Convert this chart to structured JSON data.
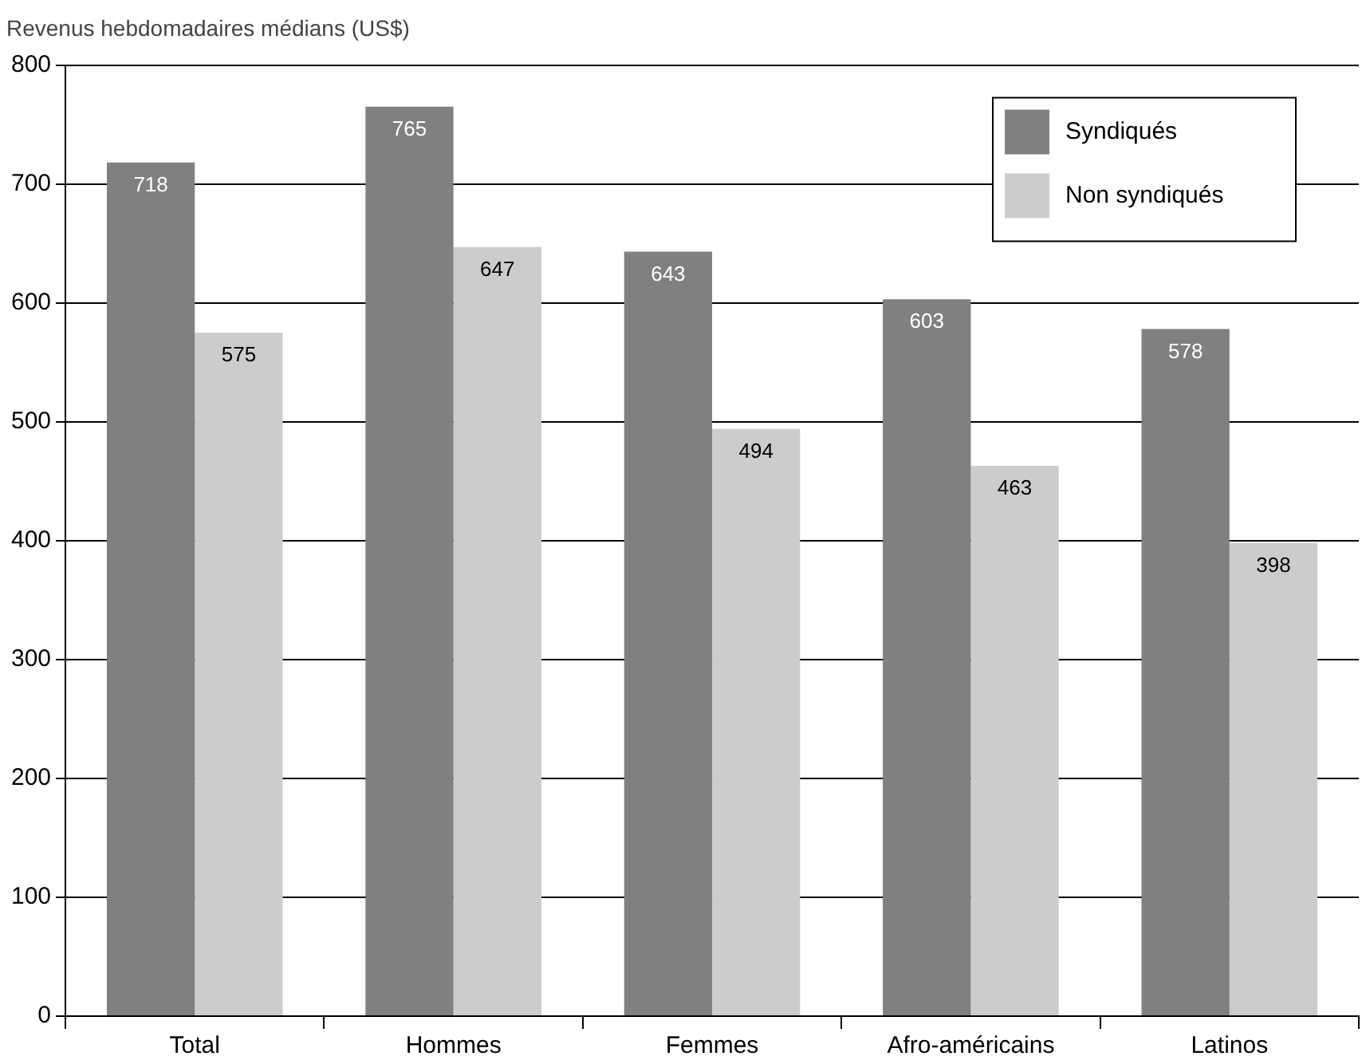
{
  "chart_data": {
    "type": "bar",
    "ylabel": "Revenus hebdomadaires médians (US$)",
    "categories": [
      "Total",
      "Hommes",
      "Femmes",
      "Afro-américains",
      "Latinos"
    ],
    "series": [
      {
        "name": "Syndiqués",
        "color": "#808080",
        "values": [
          718,
          765,
          643,
          603,
          578
        ]
      },
      {
        "name": "Non syndiqués",
        "color": "#cccccc",
        "values": [
          575,
          647,
          494,
          463,
          398
        ]
      }
    ],
    "ylim": [
      0,
      800
    ],
    "yticks": [
      0,
      100,
      200,
      300,
      400,
      500,
      600,
      700,
      800
    ],
    "grid": "y",
    "legend": "top right",
    "data_labels": true
  }
}
